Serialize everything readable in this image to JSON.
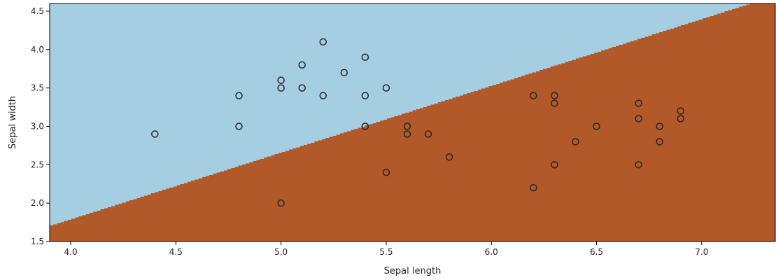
{
  "chart_data": {
    "type": "scatter",
    "title": "",
    "xlabel": "Sepal length",
    "ylabel": "Sepal width",
    "xlim": [
      3.9,
      7.35
    ],
    "ylim": [
      1.5,
      4.6
    ],
    "x_ticks": [
      "4.0",
      "4.5",
      "5.0",
      "5.5",
      "6.0",
      "6.5",
      "7.0"
    ],
    "y_ticks": [
      "1.5",
      "2.0",
      "2.5",
      "3.0",
      "3.5",
      "4.0",
      "4.5"
    ],
    "grid": false,
    "legend": "none",
    "regions": [
      {
        "label": "upper-left region",
        "color": "#a6cee3"
      },
      {
        "label": "lower-right region",
        "color": "#b15928"
      }
    ],
    "decision_boundary": {
      "x": [
        3.9,
        7.35
      ],
      "y": [
        1.7,
        4.7
      ]
    },
    "points": [
      {
        "x": 4.4,
        "y": 2.9
      },
      {
        "x": 4.8,
        "y": 3.4
      },
      {
        "x": 4.8,
        "y": 3.0
      },
      {
        "x": 5.0,
        "y": 3.6
      },
      {
        "x": 5.0,
        "y": 3.5
      },
      {
        "x": 5.0,
        "y": 2.0
      },
      {
        "x": 5.1,
        "y": 3.8
      },
      {
        "x": 5.1,
        "y": 3.5
      },
      {
        "x": 5.2,
        "y": 4.1
      },
      {
        "x": 5.2,
        "y": 3.4
      },
      {
        "x": 5.3,
        "y": 3.7
      },
      {
        "x": 5.4,
        "y": 3.9
      },
      {
        "x": 5.4,
        "y": 3.4
      },
      {
        "x": 5.4,
        "y": 3.0
      },
      {
        "x": 5.5,
        "y": 3.5
      },
      {
        "x": 5.5,
        "y": 2.4
      },
      {
        "x": 5.6,
        "y": 3.0
      },
      {
        "x": 5.6,
        "y": 2.9
      },
      {
        "x": 5.7,
        "y": 2.9
      },
      {
        "x": 5.8,
        "y": 2.6
      },
      {
        "x": 6.2,
        "y": 3.4
      },
      {
        "x": 6.2,
        "y": 2.2
      },
      {
        "x": 6.3,
        "y": 3.4
      },
      {
        "x": 6.3,
        "y": 3.3
      },
      {
        "x": 6.3,
        "y": 2.5
      },
      {
        "x": 6.4,
        "y": 2.8
      },
      {
        "x": 6.5,
        "y": 3.0
      },
      {
        "x": 6.7,
        "y": 3.3
      },
      {
        "x": 6.7,
        "y": 3.1
      },
      {
        "x": 6.7,
        "y": 2.5
      },
      {
        "x": 6.8,
        "y": 3.0
      },
      {
        "x": 6.8,
        "y": 2.8
      },
      {
        "x": 6.9,
        "y": 3.2
      },
      {
        "x": 6.9,
        "y": 3.1
      }
    ],
    "marker": {
      "style": "hollow-circle",
      "edge_color": "#262626"
    }
  }
}
